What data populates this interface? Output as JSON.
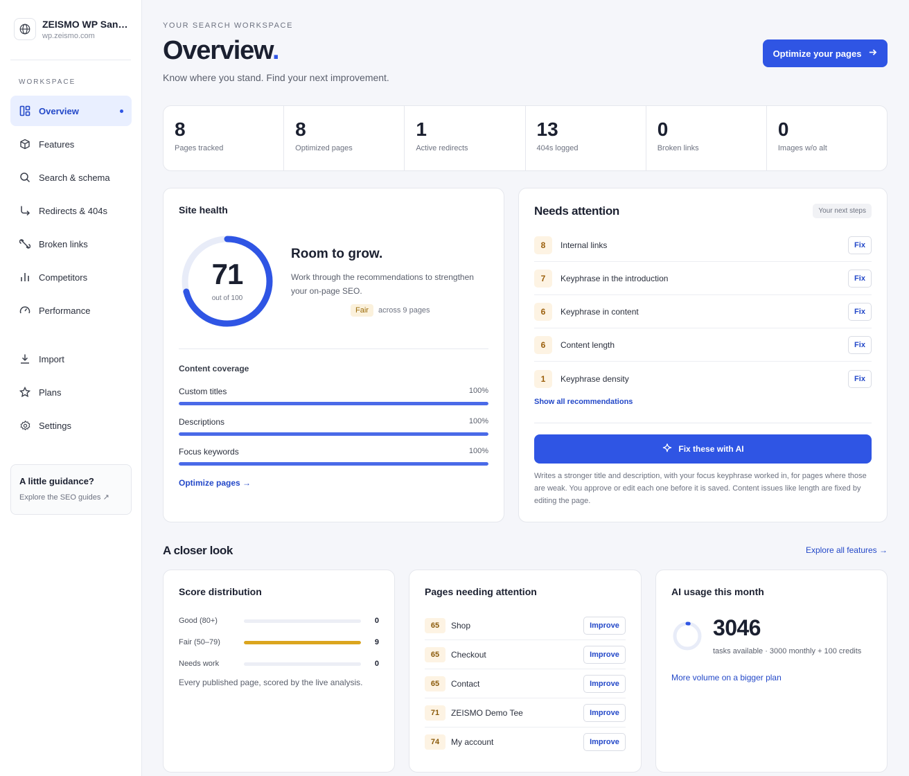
{
  "site": {
    "name": "ZEISMO WP Sandbox",
    "url": "wp.zeismo.com"
  },
  "sidebar": {
    "section_label": "WORKSPACE",
    "items": [
      {
        "label": "Overview",
        "icon": "grid-icon"
      },
      {
        "label": "Features",
        "icon": "cube-icon"
      },
      {
        "label": "Search & schema",
        "icon": "search-icon"
      },
      {
        "label": "Redirects & 404s",
        "icon": "redirect-arrow-icon"
      },
      {
        "label": "Broken links",
        "icon": "broken-link-icon"
      },
      {
        "label": "Competitors",
        "icon": "bar-chart-icon"
      },
      {
        "label": "Performance",
        "icon": "gauge-icon"
      },
      {
        "label": "Import",
        "icon": "download-icon"
      },
      {
        "label": "Plans",
        "icon": "star-icon"
      },
      {
        "label": "Settings",
        "icon": "gear-icon"
      }
    ],
    "guide": {
      "title": "A little guidance?",
      "link": "Explore the SEO guides ↗"
    }
  },
  "header": {
    "eyebrow": "YOUR SEARCH WORKSPACE",
    "title": "Overview",
    "title_accent": ".",
    "subtitle": "Know where you stand. Find your next improvement.",
    "primary_button": "Optimize your pages"
  },
  "stats": [
    {
      "value": "8",
      "label": "Pages tracked"
    },
    {
      "value": "8",
      "label": "Optimized pages"
    },
    {
      "value": "1",
      "label": "Active redirects"
    },
    {
      "value": "13",
      "label": "404s logged"
    },
    {
      "value": "0",
      "label": "Broken links"
    },
    {
      "value": "0",
      "label": "Images w/o alt"
    }
  ],
  "site_health": {
    "title": "Site health",
    "score": 71,
    "score_sub": "out of 100",
    "headline": "Room to grow.",
    "description": "Work through the recommendations to strengthen your on-page SEO.",
    "badge": "Fair",
    "across": "across 9 pages",
    "coverage_title": "Content coverage",
    "coverage": [
      {
        "label": "Custom titles",
        "pct": "100%",
        "value": 100
      },
      {
        "label": "Descriptions",
        "pct": "100%",
        "value": 100
      },
      {
        "label": "Focus keywords",
        "pct": "100%",
        "value": 100
      }
    ],
    "optimize_link": "Optimize pages →"
  },
  "attention": {
    "title": "Needs attention",
    "badge": "Your next steps",
    "items": [
      {
        "count": "8",
        "label": "Internal links",
        "action": "Fix"
      },
      {
        "count": "7",
        "label": "Keyphrase in the introduction",
        "action": "Fix"
      },
      {
        "count": "6",
        "label": "Keyphrase in content",
        "action": "Fix"
      },
      {
        "count": "6",
        "label": "Content length",
        "action": "Fix"
      },
      {
        "count": "1",
        "label": "Keyphrase density",
        "action": "Fix"
      }
    ],
    "show_all": "Show all recommendations",
    "ai_button": "Fix these with AI",
    "ai_note": "Writes a stronger title and description, with your focus keyphrase worked in, for pages where those are weak. You approve or edit each one before it is saved. Content issues like length are fixed by editing the page."
  },
  "closer": {
    "title": "A closer look",
    "explore": "Explore all features →"
  },
  "distribution": {
    "title": "Score distribution",
    "rows": [
      {
        "label": "Good (80+)",
        "value": "0",
        "fraction": 0
      },
      {
        "label": "Fair (50–79)",
        "value": "9",
        "fraction": 1
      },
      {
        "label": "Needs work",
        "value": "0",
        "fraction": 0
      }
    ],
    "note": "Every published page, scored by the live analysis."
  },
  "pages_attention": {
    "title": "Pages needing attention",
    "rows": [
      {
        "score": "65",
        "name": "Shop",
        "action": "Improve"
      },
      {
        "score": "65",
        "name": "Checkout",
        "action": "Improve"
      },
      {
        "score": "65",
        "name": "Contact",
        "action": "Improve"
      },
      {
        "score": "71",
        "name": "ZEISMO Demo Tee",
        "action": "Improve"
      },
      {
        "score": "74",
        "name": "My account",
        "action": "Improve"
      }
    ]
  },
  "ai_usage": {
    "title": "AI usage this month",
    "value": "3046",
    "sub": "tasks available · 3000 monthly + 100 credits",
    "more": "More volume on a bigger plan",
    "used_fraction": 0.02
  },
  "colors": {
    "accent": "#2f55e4",
    "fair": "#dba51e"
  }
}
